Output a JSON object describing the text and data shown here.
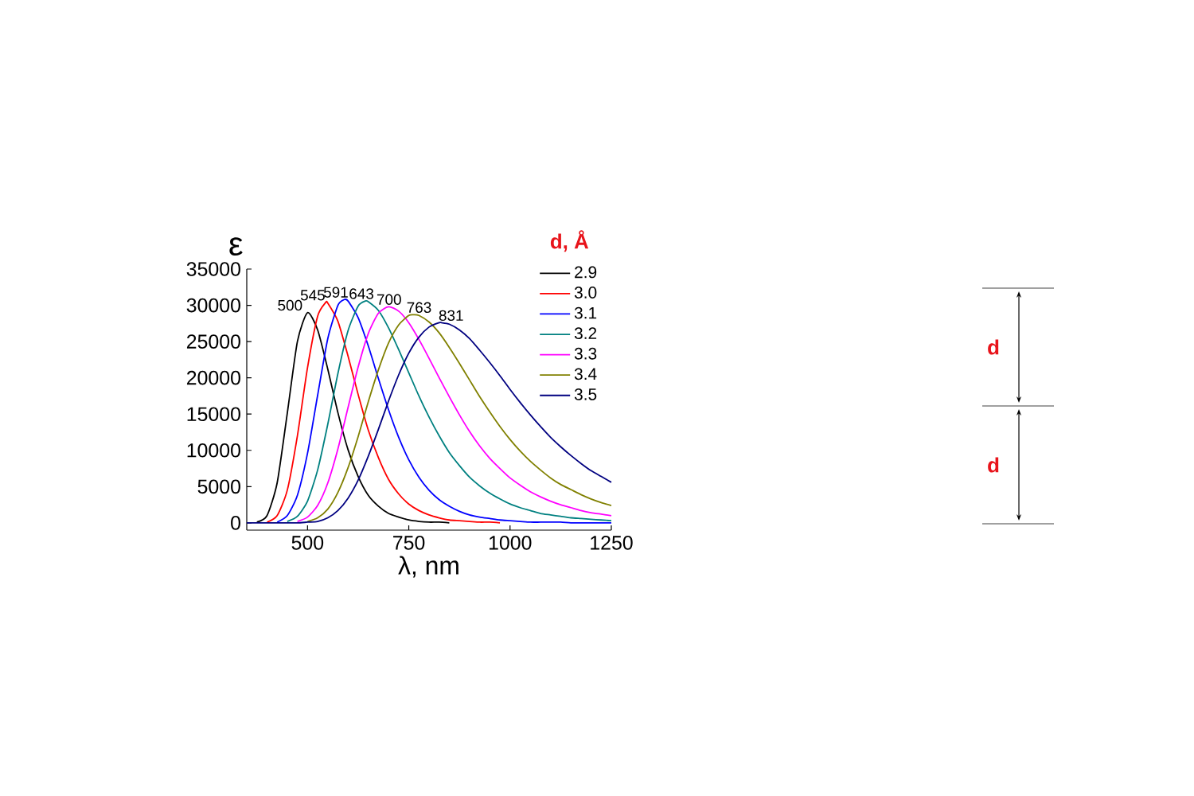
{
  "chart_data": {
    "type": "line",
    "xlabel": "λ, nm",
    "ylabel": "ε",
    "legend_title": "d, Å",
    "legend": "top right",
    "marker": "none",
    "line_style": "solid",
    "xlim": [
      350,
      1250
    ],
    "ylim": [
      -1000,
      35000
    ],
    "xticks": [
      500,
      750,
      1000,
      1250
    ],
    "yticks": [
      0,
      5000,
      10000,
      15000,
      20000,
      25000,
      30000,
      35000
    ],
    "series": [
      {
        "name": "2.9",
        "color": "#000000",
        "x": [
          375,
          400,
          425,
          450,
          475,
          500,
          525,
          550,
          575,
          600,
          625,
          650,
          675,
          700,
          725,
          750,
          775,
          800,
          825,
          850
        ],
        "values": [
          100,
          1000,
          5500,
          15100,
          25000,
          29000,
          26600,
          21200,
          15200,
          10100,
          6400,
          3800,
          2300,
          1300,
          800,
          400,
          200,
          100,
          100,
          0
        ]
      },
      {
        "name": "3.0",
        "color": "#ff0000",
        "x": [
          400,
          425,
          450,
          475,
          500,
          525,
          545,
          550,
          575,
          600,
          625,
          650,
          675,
          700,
          725,
          750,
          775,
          800,
          825,
          850,
          875,
          900,
          925,
          950,
          975
        ],
        "values": [
          100,
          1000,
          4500,
          12000,
          21400,
          28500,
          30400,
          30300,
          27800,
          23000,
          17700,
          12800,
          9000,
          6000,
          4000,
          2600,
          1700,
          1100,
          700,
          400,
          300,
          200,
          100,
          100,
          0
        ]
      },
      {
        "name": "3.1",
        "color": "#0000ff",
        "x": [
          425,
          450,
          475,
          500,
          525,
          550,
          575,
          591,
          600,
          625,
          650,
          675,
          700,
          725,
          750,
          775,
          800,
          825,
          850,
          875,
          900,
          925,
          950,
          975,
          1000,
          1025,
          1050,
          1075,
          1100,
          1125,
          1150,
          1175,
          1200,
          1225,
          1250
        ],
        "values": [
          100,
          1000,
          3800,
          9600,
          17600,
          25400,
          30000,
          30800,
          30600,
          28300,
          24400,
          19900,
          15600,
          11800,
          8700,
          6300,
          4500,
          3200,
          2300,
          1600,
          1100,
          800,
          600,
          400,
          300,
          200,
          100,
          100,
          100,
          100,
          0,
          0,
          0,
          0,
          0
        ]
      },
      {
        "name": "3.2",
        "color": "#008080",
        "x": [
          450,
          475,
          500,
          525,
          550,
          575,
          600,
          625,
          643,
          650,
          675,
          700,
          725,
          750,
          775,
          800,
          825,
          850,
          875,
          900,
          925,
          950,
          975,
          1000,
          1025,
          1050,
          1075,
          1100,
          1125,
          1150,
          1175,
          1200,
          1225,
          1250
        ],
        "values": [
          200,
          900,
          3000,
          7300,
          13600,
          20600,
          26500,
          29900,
          30600,
          30500,
          29300,
          26900,
          23900,
          20700,
          17500,
          14600,
          12000,
          9700,
          7900,
          6300,
          5100,
          4100,
          3300,
          2600,
          2100,
          1700,
          1300,
          1100,
          900,
          700,
          600,
          500,
          400,
          300
        ]
      },
      {
        "name": "3.3",
        "color": "#ff00ff",
        "x": [
          475,
          500,
          525,
          550,
          575,
          600,
          625,
          650,
          675,
          700,
          725,
          750,
          775,
          800,
          825,
          850,
          875,
          900,
          925,
          950,
          975,
          1000,
          1025,
          1050,
          1075,
          1100,
          1125,
          1150,
          1175,
          1200,
          1225,
          1250
        ],
        "values": [
          200,
          800,
          2400,
          5500,
          10200,
          15900,
          21500,
          26100,
          28900,
          29800,
          29200,
          27600,
          25300,
          22700,
          20000,
          17400,
          14900,
          12600,
          10600,
          8900,
          7500,
          6200,
          5200,
          4300,
          3600,
          3000,
          2500,
          2100,
          1700,
          1400,
          1200,
          1000
        ]
      },
      {
        "name": "3.4",
        "color": "#808000",
        "x": [
          500,
          525,
          550,
          575,
          600,
          625,
          650,
          675,
          700,
          725,
          750,
          763,
          775,
          800,
          825,
          850,
          875,
          900,
          925,
          950,
          975,
          1000,
          1025,
          1050,
          1075,
          1100,
          1125,
          1150,
          1175,
          1200,
          1225,
          1250
        ],
        "values": [
          200,
          700,
          1900,
          4200,
          7600,
          11900,
          16700,
          21100,
          24800,
          27300,
          28600,
          28700,
          28600,
          27700,
          26200,
          24200,
          22000,
          19700,
          17400,
          15300,
          13300,
          11500,
          9900,
          8500,
          7300,
          6200,
          5300,
          4600,
          3900,
          3300,
          2800,
          2400
        ]
      },
      {
        "name": "3.5",
        "color": "#000080",
        "x": [
          350,
          375,
          400,
          425,
          450,
          475,
          500,
          525,
          550,
          575,
          600,
          625,
          650,
          675,
          700,
          725,
          750,
          775,
          800,
          825,
          831,
          850,
          875,
          900,
          925,
          950,
          975,
          1000,
          1025,
          1050,
          1075,
          1100,
          1125,
          1150,
          1175,
          1200,
          1225,
          1250
        ],
        "values": [
          0,
          0,
          0,
          0,
          0,
          0,
          100,
          200,
          700,
          1700,
          3400,
          5900,
          9200,
          12900,
          16800,
          20400,
          23400,
          25600,
          27000,
          27600,
          27600,
          27400,
          26600,
          25400,
          23800,
          22100,
          20300,
          18400,
          16600,
          14900,
          13300,
          11800,
          10500,
          9300,
          8200,
          7200,
          6400,
          5600
        ]
      }
    ],
    "annotations": [
      {
        "text": "500",
        "x": 500,
        "y": 29000
      },
      {
        "text": "545",
        "x": 545,
        "y": 30400
      },
      {
        "text": "591",
        "x": 591,
        "y": 30800
      },
      {
        "text": "643",
        "x": 643,
        "y": 30600
      },
      {
        "text": "700",
        "x": 700,
        "y": 29800
      },
      {
        "text": "763",
        "x": 763,
        "y": 28700
      },
      {
        "text": "831",
        "x": 831,
        "y": 27600
      },
      "d",
      "d"
    ]
  }
}
